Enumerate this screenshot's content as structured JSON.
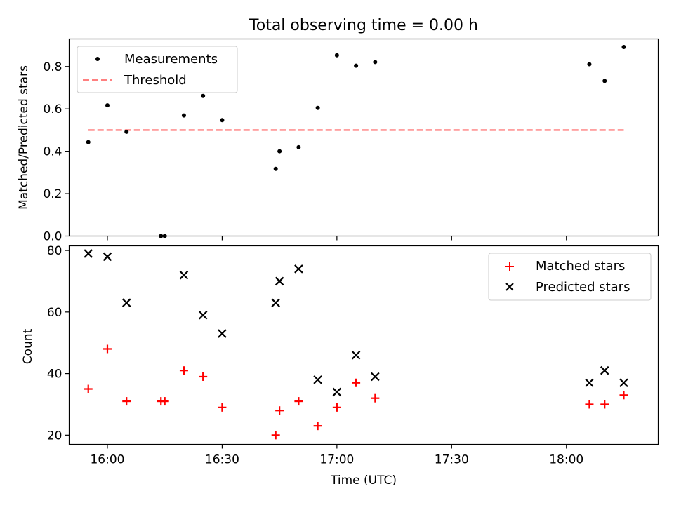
{
  "chart_data": [
    {
      "type": "scatter",
      "title": "Total observing time = 0.00 h",
      "ylabel": "Matched/Predicted stars",
      "ylim": [
        0,
        0.93
      ],
      "yticks": [
        0.0,
        0.2,
        0.4,
        0.6,
        0.8
      ],
      "ytick_labels": [
        "0.0",
        "0.2",
        "0.4",
        "0.6",
        "0.8"
      ],
      "xlim": [
        "15:50",
        "18:24"
      ],
      "grid": false,
      "legend": "top-left",
      "series": [
        {
          "name": "Measurements",
          "marker": "dot",
          "color": "#000000",
          "x": [
            "15:55",
            "16:00",
            "16:05",
            "16:14",
            "16:15",
            "16:20",
            "16:25",
            "16:30",
            "16:44",
            "16:45",
            "16:50",
            "16:55",
            "17:00",
            "17:05",
            "17:10",
            "18:06",
            "18:10",
            "18:15"
          ],
          "y": [
            0.443,
            0.617,
            0.492,
            0.0,
            0.0,
            0.569,
            0.661,
            0.547,
            0.317,
            0.4,
            0.419,
            0.605,
            0.853,
            0.804,
            0.821,
            0.811,
            0.732,
            0.892
          ]
        },
        {
          "name": "Threshold",
          "style": "dashed",
          "color": "#ff8080",
          "x": [
            "15:55",
            "18:15"
          ],
          "y": [
            0.5,
            0.5
          ]
        }
      ]
    },
    {
      "type": "scatter",
      "xlabel": "Time (UTC)",
      "ylabel": "Count",
      "ylim": [
        17,
        81.5
      ],
      "yticks": [
        20,
        40,
        60,
        80
      ],
      "ytick_labels": [
        "20",
        "40",
        "60",
        "80"
      ],
      "xlim": [
        "15:50",
        "18:24"
      ],
      "xticks": [
        "16:00",
        "16:30",
        "17:00",
        "17:30",
        "18:00"
      ],
      "xtick_labels": [
        "16:00",
        "16:30",
        "17:00",
        "17:30",
        "18:00"
      ],
      "grid": false,
      "legend": "top-right",
      "series": [
        {
          "name": "Matched stars",
          "marker": "plus",
          "color": "#ff0000",
          "x": [
            "15:55",
            "16:00",
            "16:05",
            "16:14",
            "16:15",
            "16:20",
            "16:25",
            "16:30",
            "16:44",
            "16:45",
            "16:50",
            "16:55",
            "17:00",
            "17:05",
            "17:10",
            "18:06",
            "18:10",
            "18:15"
          ],
          "y": [
            35,
            48,
            31,
            31,
            31,
            41,
            39,
            29,
            20,
            28,
            31,
            23,
            29,
            37,
            32,
            30,
            30,
            33
          ]
        },
        {
          "name": "Predicted stars",
          "marker": "x",
          "color": "#000000",
          "x": [
            "15:55",
            "16:00",
            "16:05",
            "16:20",
            "16:25",
            "16:30",
            "16:44",
            "16:45",
            "16:50",
            "16:55",
            "17:00",
            "17:05",
            "17:10",
            "18:06",
            "18:10",
            "18:15"
          ],
          "y": [
            79,
            78,
            63,
            72,
            59,
            53,
            63,
            70,
            74,
            38,
            34,
            46,
            39,
            37,
            41,
            37
          ]
        }
      ]
    }
  ]
}
